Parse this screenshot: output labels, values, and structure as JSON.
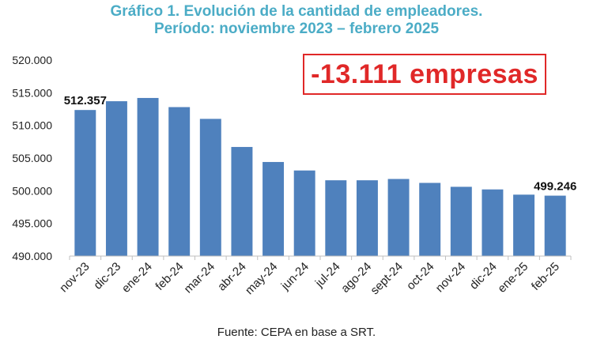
{
  "title_line1": "Gráfico 1. Evolución de la cantidad de empleadores.",
  "title_line2": "Período: noviembre 2023 – febrero 2025",
  "callout": "-13.111 empresas",
  "source": "Fuente: CEPA en base a SRT.",
  "colors": {
    "title": "#4bacc6",
    "bar": "#4f81bd",
    "callout": "#e02828"
  },
  "chart_data": {
    "type": "bar",
    "categories": [
      "nov-23",
      "dic-23",
      "ene-24",
      "feb-24",
      "mar-24",
      "abr-24",
      "may-24",
      "jun-24",
      "jul-24",
      "ago-24",
      "sept-24",
      "oct-24",
      "nov-24",
      "dic-24",
      "ene-25",
      "feb-25"
    ],
    "values": [
      512357,
      513700,
      514200,
      512800,
      511000,
      506700,
      504400,
      503100,
      501600,
      501600,
      501800,
      501200,
      500600,
      500200,
      499400,
      499246
    ],
    "ylim": [
      490000,
      520000
    ],
    "yticks": [
      490000,
      495000,
      500000,
      505000,
      510000,
      515000,
      520000
    ],
    "ytick_labels": [
      "490.000",
      "495.000",
      "500.000",
      "505.000",
      "510.000",
      "515.000",
      "520.000"
    ],
    "data_labels": [
      {
        "index": 0,
        "text": "512.357"
      },
      {
        "index": 15,
        "text": "499.246"
      }
    ],
    "grid": false,
    "legend": "none"
  }
}
